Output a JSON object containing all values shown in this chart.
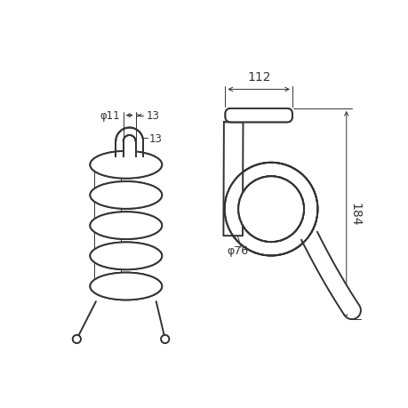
{
  "bg_color": "#ffffff",
  "line_color": "#333333",
  "lw": 1.4,
  "tlw": 0.7,
  "label_112": "112",
  "label_184": "184",
  "label_phi11": "φ11",
  "label_phi76": "φ76",
  "label_13": "13"
}
